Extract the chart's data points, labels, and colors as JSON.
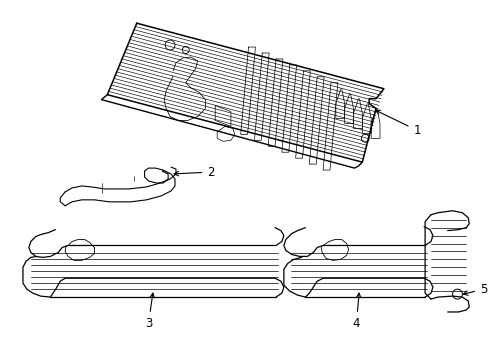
{
  "bg_color": "#ffffff",
  "line_color": "#000000",
  "fig_w": 4.89,
  "fig_h": 3.6,
  "dpi": 100
}
